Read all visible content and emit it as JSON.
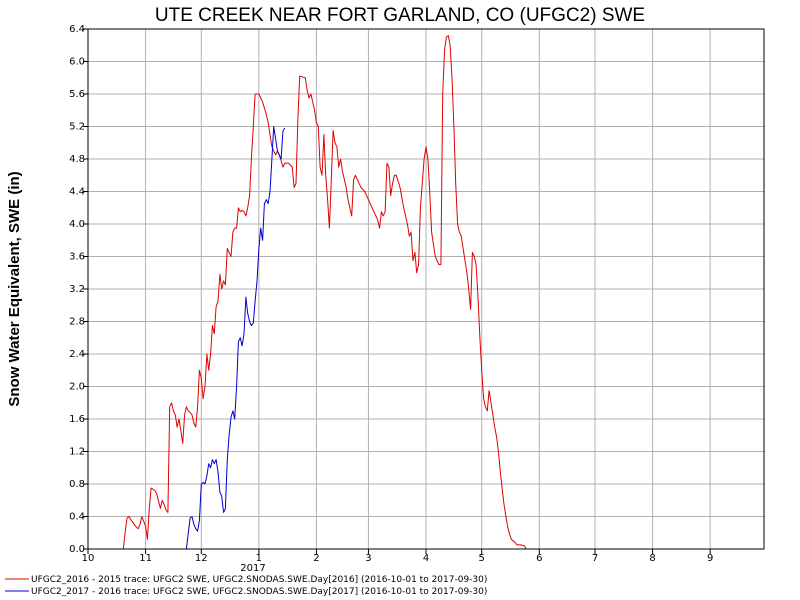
{
  "chart_data": {
    "type": "line",
    "title": "UTE CREEK NEAR FORT GARLAND, CO (UFGC2) SWE",
    "ylabel": "Snow Water Equivalent, SWE (in)",
    "xlabel": "",
    "year_label": "2017",
    "ylim": [
      0,
      6.4
    ],
    "yticks": [
      "0.0",
      "0.4",
      "0.8",
      "1.2",
      "1.6",
      "2.0",
      "2.4",
      "2.8",
      "3.2",
      "3.6",
      "4.0",
      "4.4",
      "4.8",
      "5.2",
      "5.6",
      "6.0",
      "6.4"
    ],
    "xlim": [
      "2016-10-01",
      "2017-09-30"
    ],
    "xticks": [
      {
        "label": "10",
        "date": "2016-10-01"
      },
      {
        "label": "11",
        "date": "2016-11-01"
      },
      {
        "label": "12",
        "date": "2016-12-01"
      },
      {
        "label": "1",
        "date": "2017-01-01"
      },
      {
        "label": "2",
        "date": "2017-02-01"
      },
      {
        "label": "3",
        "date": "2017-03-01"
      },
      {
        "label": "4",
        "date": "2017-04-01"
      },
      {
        "label": "5",
        "date": "2017-05-01"
      },
      {
        "label": "6",
        "date": "2017-06-01"
      },
      {
        "label": "7",
        "date": "2017-07-01"
      },
      {
        "label": "8",
        "date": "2017-08-01"
      },
      {
        "label": "9",
        "date": "2017-09-01"
      }
    ],
    "grid": true,
    "legend_position": "bottom",
    "series": [
      {
        "name": "UFGC2_2016 - 2015 trace: UFGC2 SWE, UFGC2.SNODAS.SWE.Day[2016] (2016-10-01 to 2017-09-30)",
        "color": "#e00000",
        "points": [
          [
            "2016-10-20",
            0.0
          ],
          [
            "2016-10-21",
            0.2
          ],
          [
            "2016-10-22",
            0.38
          ],
          [
            "2016-10-23",
            0.4
          ],
          [
            "2016-10-25",
            0.33
          ],
          [
            "2016-10-27",
            0.27
          ],
          [
            "2016-10-28",
            0.25
          ],
          [
            "2016-10-29",
            0.3
          ],
          [
            "2016-10-30",
            0.4
          ],
          [
            "2016-11-01",
            0.28
          ],
          [
            "2016-11-02",
            0.12
          ],
          [
            "2016-11-03",
            0.5
          ],
          [
            "2016-11-04",
            0.75
          ],
          [
            "2016-11-06",
            0.72
          ],
          [
            "2016-11-07",
            0.68
          ],
          [
            "2016-11-09",
            0.5
          ],
          [
            "2016-11-10",
            0.6
          ],
          [
            "2016-11-11",
            0.55
          ],
          [
            "2016-11-12",
            0.48
          ],
          [
            "2016-11-13",
            0.45
          ],
          [
            "2016-11-14",
            1.75
          ],
          [
            "2016-11-15",
            1.8
          ],
          [
            "2016-11-16",
            1.7
          ],
          [
            "2016-11-17",
            1.65
          ],
          [
            "2016-11-18",
            1.5
          ],
          [
            "2016-11-19",
            1.6
          ],
          [
            "2016-11-20",
            1.45
          ],
          [
            "2016-11-21",
            1.3
          ],
          [
            "2016-11-22",
            1.65
          ],
          [
            "2016-11-23",
            1.75
          ],
          [
            "2016-11-24",
            1.7
          ],
          [
            "2016-11-25",
            1.68
          ],
          [
            "2016-11-26",
            1.65
          ],
          [
            "2016-11-27",
            1.55
          ],
          [
            "2016-11-28",
            1.5
          ],
          [
            "2016-11-29",
            1.75
          ],
          [
            "2016-11-30",
            2.2
          ],
          [
            "2016-12-01",
            2.1
          ],
          [
            "2016-12-02",
            1.85
          ],
          [
            "2016-12-03",
            2.0
          ],
          [
            "2016-12-04",
            2.4
          ],
          [
            "2016-12-05",
            2.2
          ],
          [
            "2016-12-06",
            2.4
          ],
          [
            "2016-12-07",
            2.75
          ],
          [
            "2016-12-08",
            2.65
          ],
          [
            "2016-12-09",
            2.98
          ],
          [
            "2016-12-10",
            3.05
          ],
          [
            "2016-12-11",
            3.38
          ],
          [
            "2016-12-12",
            3.2
          ],
          [
            "2016-12-13",
            3.3
          ],
          [
            "2016-12-14",
            3.25
          ],
          [
            "2016-12-15",
            3.7
          ],
          [
            "2016-12-16",
            3.65
          ],
          [
            "2016-12-17",
            3.6
          ],
          [
            "2016-12-18",
            3.9
          ],
          [
            "2016-12-19",
            3.95
          ],
          [
            "2016-12-20",
            3.95
          ],
          [
            "2016-12-21",
            4.2
          ],
          [
            "2016-12-22",
            4.15
          ],
          [
            "2016-12-23",
            4.17
          ],
          [
            "2016-12-24",
            4.15
          ],
          [
            "2016-12-25",
            4.1
          ],
          [
            "2016-12-26",
            4.2
          ],
          [
            "2016-12-27",
            4.35
          ],
          [
            "2016-12-28",
            4.8
          ],
          [
            "2016-12-29",
            5.2
          ],
          [
            "2016-12-30",
            5.6
          ],
          [
            "2017-01-01",
            5.6
          ],
          [
            "2017-01-03",
            5.5
          ],
          [
            "2017-01-05",
            5.35
          ],
          [
            "2017-01-06",
            5.25
          ],
          [
            "2017-01-07",
            5.1
          ],
          [
            "2017-01-08",
            4.95
          ],
          [
            "2017-01-09",
            4.9
          ],
          [
            "2017-01-10",
            4.85
          ],
          [
            "2017-01-11",
            4.9
          ],
          [
            "2017-01-12",
            4.85
          ],
          [
            "2017-01-13",
            4.78
          ],
          [
            "2017-01-14",
            4.7
          ],
          [
            "2017-01-15",
            4.75
          ],
          [
            "2017-01-17",
            4.75
          ],
          [
            "2017-01-19",
            4.7
          ],
          [
            "2017-01-20",
            4.45
          ],
          [
            "2017-01-21",
            4.5
          ],
          [
            "2017-01-22",
            5.3
          ],
          [
            "2017-01-23",
            5.82
          ],
          [
            "2017-01-26",
            5.8
          ],
          [
            "2017-01-27",
            5.65
          ],
          [
            "2017-01-28",
            5.55
          ],
          [
            "2017-01-29",
            5.6
          ],
          [
            "2017-01-31",
            5.4
          ],
          [
            "2017-02-01",
            5.25
          ],
          [
            "2017-02-02",
            5.2
          ],
          [
            "2017-02-03",
            4.7
          ],
          [
            "2017-02-04",
            4.6
          ],
          [
            "2017-02-05",
            5.1
          ],
          [
            "2017-02-06",
            4.6
          ],
          [
            "2017-02-07",
            4.3
          ],
          [
            "2017-02-08",
            3.95
          ],
          [
            "2017-02-09",
            4.55
          ],
          [
            "2017-02-10",
            5.15
          ],
          [
            "2017-02-11",
            5.0
          ],
          [
            "2017-02-12",
            4.95
          ],
          [
            "2017-02-13",
            4.7
          ],
          [
            "2017-02-14",
            4.8
          ],
          [
            "2017-02-15",
            4.65
          ],
          [
            "2017-02-16",
            4.55
          ],
          [
            "2017-02-17",
            4.45
          ],
          [
            "2017-02-18",
            4.3
          ],
          [
            "2017-02-20",
            4.1
          ],
          [
            "2017-02-21",
            4.55
          ],
          [
            "2017-02-22",
            4.6
          ],
          [
            "2017-02-24",
            4.5
          ],
          [
            "2017-02-25",
            4.45
          ],
          [
            "2017-02-27",
            4.4
          ],
          [
            "2017-03-01",
            4.3
          ],
          [
            "2017-03-03",
            4.2
          ],
          [
            "2017-03-05",
            4.1
          ],
          [
            "2017-03-06",
            4.05
          ],
          [
            "2017-03-07",
            3.95
          ],
          [
            "2017-03-08",
            4.15
          ],
          [
            "2017-03-09",
            4.1
          ],
          [
            "2017-03-10",
            4.15
          ],
          [
            "2017-03-11",
            4.75
          ],
          [
            "2017-03-12",
            4.7
          ],
          [
            "2017-03-13",
            4.35
          ],
          [
            "2017-03-14",
            4.5
          ],
          [
            "2017-03-15",
            4.6
          ],
          [
            "2017-03-16",
            4.6
          ],
          [
            "2017-03-18",
            4.45
          ],
          [
            "2017-03-20",
            4.2
          ],
          [
            "2017-03-21",
            4.1
          ],
          [
            "2017-03-22",
            4.0
          ],
          [
            "2017-03-23",
            3.85
          ],
          [
            "2017-03-24",
            3.9
          ],
          [
            "2017-03-25",
            3.55
          ],
          [
            "2017-03-26",
            3.65
          ],
          [
            "2017-03-27",
            3.4
          ],
          [
            "2017-03-28",
            3.5
          ],
          [
            "2017-03-29",
            4.2
          ],
          [
            "2017-03-31",
            4.8
          ],
          [
            "2017-04-01",
            4.95
          ],
          [
            "2017-04-02",
            4.8
          ],
          [
            "2017-04-03",
            4.4
          ],
          [
            "2017-04-04",
            3.9
          ],
          [
            "2017-04-05",
            3.75
          ],
          [
            "2017-04-06",
            3.6
          ],
          [
            "2017-04-07",
            3.55
          ],
          [
            "2017-04-08",
            3.5
          ],
          [
            "2017-04-09",
            3.5
          ],
          [
            "2017-04-10",
            5.6
          ],
          [
            "2017-04-11",
            6.15
          ],
          [
            "2017-04-12",
            6.3
          ],
          [
            "2017-04-13",
            6.32
          ],
          [
            "2017-04-14",
            6.2
          ],
          [
            "2017-04-15",
            5.8
          ],
          [
            "2017-04-16",
            5.2
          ],
          [
            "2017-04-17",
            4.5
          ],
          [
            "2017-04-18",
            4.0
          ],
          [
            "2017-04-19",
            3.9
          ],
          [
            "2017-04-20",
            3.85
          ],
          [
            "2017-04-21",
            3.7
          ],
          [
            "2017-04-22",
            3.55
          ],
          [
            "2017-04-23",
            3.4
          ],
          [
            "2017-04-24",
            3.2
          ],
          [
            "2017-04-25",
            2.95
          ],
          [
            "2017-04-26",
            3.65
          ],
          [
            "2017-04-27",
            3.6
          ],
          [
            "2017-04-28",
            3.5
          ],
          [
            "2017-04-29",
            3.1
          ],
          [
            "2017-04-30",
            2.6
          ],
          [
            "2017-05-01",
            2.2
          ],
          [
            "2017-05-02",
            1.85
          ],
          [
            "2017-05-03",
            1.75
          ],
          [
            "2017-05-04",
            1.7
          ],
          [
            "2017-05-05",
            1.95
          ],
          [
            "2017-05-06",
            1.8
          ],
          [
            "2017-05-07",
            1.65
          ],
          [
            "2017-05-08",
            1.5
          ],
          [
            "2017-05-09",
            1.38
          ],
          [
            "2017-05-10",
            1.2
          ],
          [
            "2017-05-11",
            0.95
          ],
          [
            "2017-05-12",
            0.75
          ],
          [
            "2017-05-13",
            0.55
          ],
          [
            "2017-05-14",
            0.4
          ],
          [
            "2017-05-15",
            0.27
          ],
          [
            "2017-05-16",
            0.18
          ],
          [
            "2017-05-17",
            0.12
          ],
          [
            "2017-05-18",
            0.1
          ],
          [
            "2017-05-19",
            0.08
          ],
          [
            "2017-05-20",
            0.05
          ],
          [
            "2017-05-22",
            0.05
          ],
          [
            "2017-05-24",
            0.04
          ],
          [
            "2017-05-25",
            0.0
          ]
        ]
      },
      {
        "name": "UFGC2_2017 - 2016 trace: UFGC2 SWE, UFGC2.SNODAS.SWE.Day[2017] (2016-10-01 to 2017-09-30)",
        "color": "#0000cc",
        "points": [
          [
            "2016-11-23",
            0.0
          ],
          [
            "2016-11-24",
            0.2
          ],
          [
            "2016-11-25",
            0.38
          ],
          [
            "2016-11-26",
            0.4
          ],
          [
            "2016-11-27",
            0.3
          ],
          [
            "2016-11-28",
            0.25
          ],
          [
            "2016-11-29",
            0.22
          ],
          [
            "2016-11-30",
            0.35
          ],
          [
            "2016-12-01",
            0.8
          ],
          [
            "2016-12-02",
            0.82
          ],
          [
            "2016-12-03",
            0.8
          ],
          [
            "2016-12-04",
            0.9
          ],
          [
            "2016-12-05",
            1.05
          ],
          [
            "2016-12-06",
            1.0
          ],
          [
            "2016-12-07",
            1.1
          ],
          [
            "2016-12-08",
            1.05
          ],
          [
            "2016-12-09",
            1.1
          ],
          [
            "2016-12-10",
            0.95
          ],
          [
            "2016-12-11",
            0.7
          ],
          [
            "2016-12-12",
            0.65
          ],
          [
            "2016-12-13",
            0.45
          ],
          [
            "2016-12-14",
            0.5
          ],
          [
            "2016-12-15",
            1.1
          ],
          [
            "2016-12-16",
            1.4
          ],
          [
            "2016-12-17",
            1.62
          ],
          [
            "2016-12-18",
            1.7
          ],
          [
            "2016-12-19",
            1.6
          ],
          [
            "2016-12-20",
            2.0
          ],
          [
            "2016-12-21",
            2.55
          ],
          [
            "2016-12-22",
            2.6
          ],
          [
            "2016-12-23",
            2.5
          ],
          [
            "2016-12-24",
            2.65
          ],
          [
            "2016-12-25",
            3.1
          ],
          [
            "2016-12-26",
            2.9
          ],
          [
            "2016-12-27",
            2.8
          ],
          [
            "2016-12-28",
            2.75
          ],
          [
            "2016-12-29",
            2.78
          ],
          [
            "2016-12-30",
            3.05
          ],
          [
            "2016-12-31",
            3.3
          ],
          [
            "2017-01-01",
            3.7
          ],
          [
            "2017-01-02",
            3.95
          ],
          [
            "2017-01-03",
            3.8
          ],
          [
            "2017-01-04",
            4.25
          ],
          [
            "2017-01-05",
            4.3
          ],
          [
            "2017-01-06",
            4.25
          ],
          [
            "2017-01-07",
            4.4
          ],
          [
            "2017-01-08",
            4.8
          ],
          [
            "2017-01-09",
            5.2
          ],
          [
            "2017-01-10",
            5.05
          ],
          [
            "2017-01-11",
            4.9
          ],
          [
            "2017-01-12",
            4.85
          ],
          [
            "2017-01-13",
            4.8
          ],
          [
            "2017-01-14",
            5.15
          ],
          [
            "2017-01-15",
            5.18
          ]
        ]
      }
    ]
  }
}
